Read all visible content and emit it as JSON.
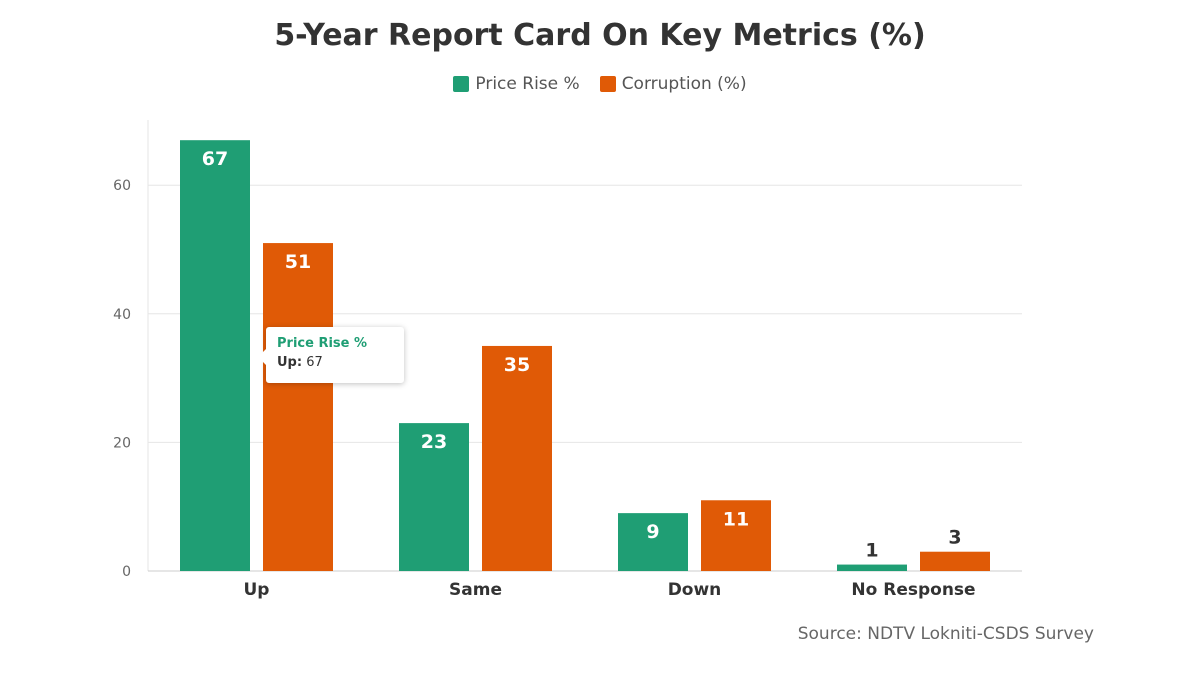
{
  "chart_data": {
    "type": "bar",
    "title": "5-Year Report Card On Key Metrics (%)",
    "categories": [
      "Up",
      "Same",
      "Down",
      "No Response"
    ],
    "series": [
      {
        "name": "Price Rise %",
        "color": "#1f9e74",
        "values": [
          67,
          23,
          9,
          1
        ]
      },
      {
        "name": "Corruption (%)",
        "color": "#e05a06",
        "values": [
          51,
          35,
          11,
          3
        ]
      }
    ],
    "yticks": [
      "0",
      "20",
      "40",
      "60"
    ],
    "ylim": [
      0,
      70
    ],
    "xlabel": "",
    "ylabel": "",
    "legend_position": "top-center",
    "grid": true
  },
  "tooltip": {
    "series_name": "Price Rise %",
    "category_label": "Up:",
    "value": "67",
    "color": "#1f9e74"
  },
  "source": "Source: NDTV Lokniti-CSDS Survey"
}
